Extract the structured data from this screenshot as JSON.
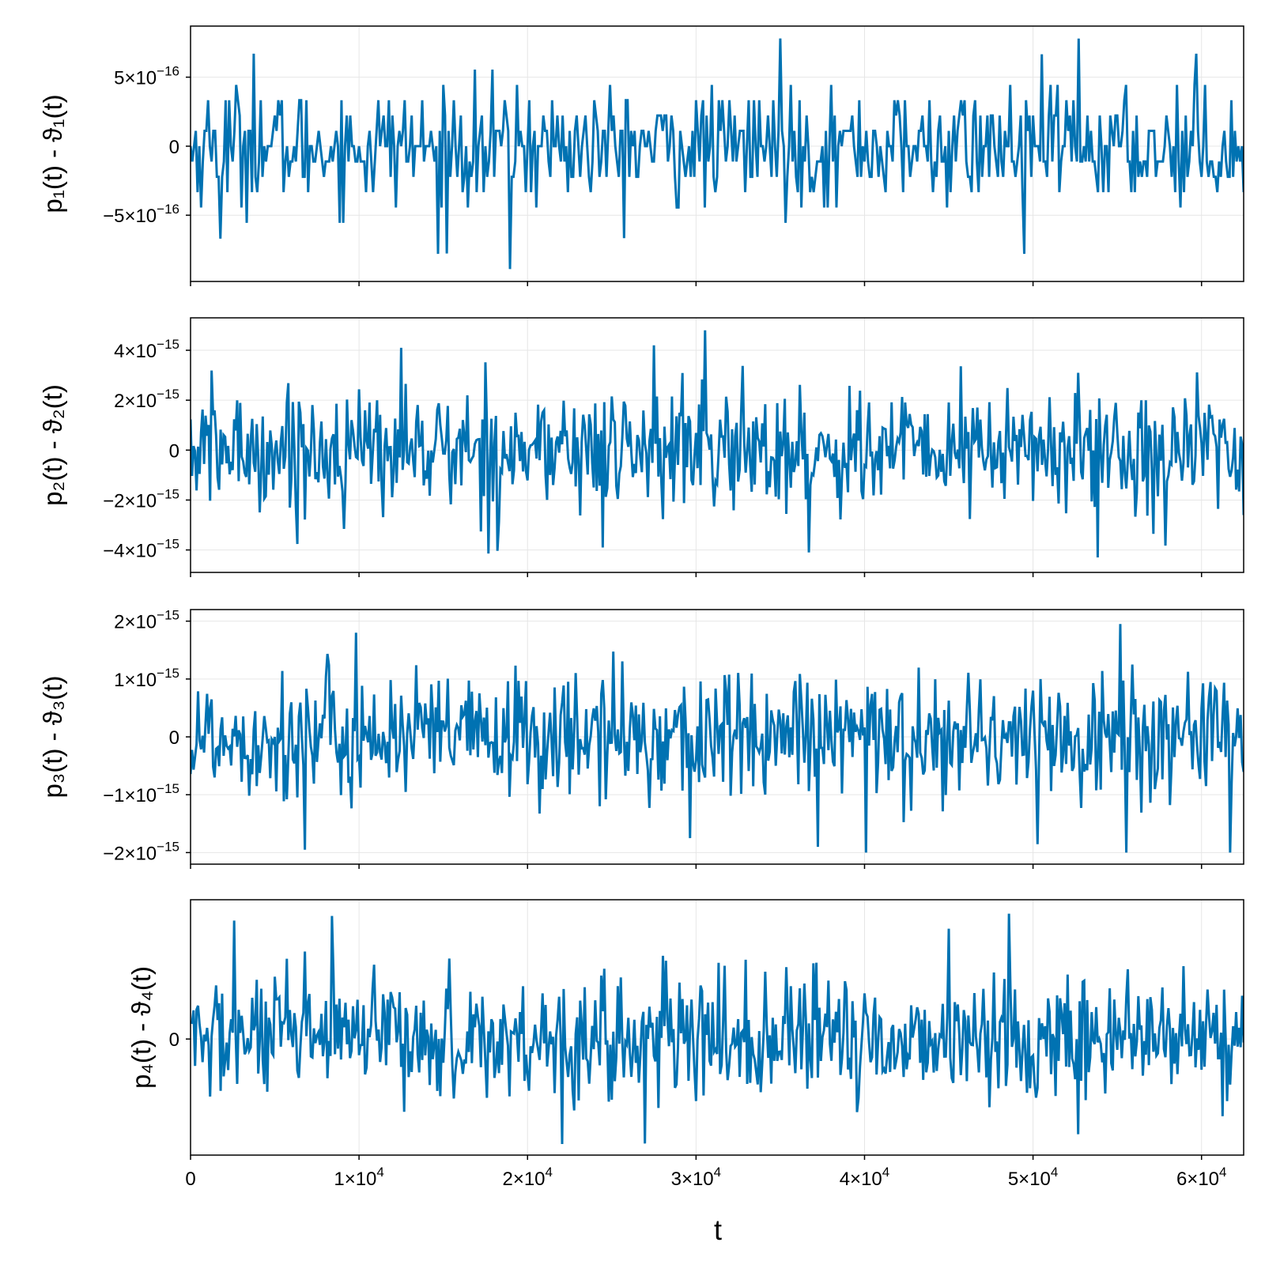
{
  "colors": {
    "series": "#0072b2",
    "grid": "#e6e6e6",
    "frame": "#000000",
    "background": "#ffffff"
  },
  "chart_data": [
    {
      "type": "line",
      "ylabel": "p₁(t) - ϑ₁(t)",
      "xlim": [
        0,
        62500
      ],
      "ylim": [
        -9.8e-16,
        8.7e-16
      ],
      "y_ticks": [
        -5e-16,
        0,
        5e-16
      ],
      "y_tick_labels": [
        {
          "mantissa": "−5×10",
          "exponent": "−16"
        },
        {
          "mantissa": "0",
          "exponent": ""
        },
        {
          "mantissa": "5×10",
          "exponent": "−16"
        }
      ],
      "grid": true,
      "series": [
        {
          "color": "#0072b2",
          "sample_count": 600,
          "noise_std": 2.1e-16,
          "quantum": 1.11e-16,
          "extremes": [
            {
              "x": 19000,
              "y": -8.9e-16
            },
            {
              "x": 35000,
              "y": 7.8e-16
            },
            {
              "x": 52700,
              "y": 7.8e-16
            },
            {
              "x": 3800,
              "y": 6.7e-16
            },
            {
              "x": 14700,
              "y": -7.8e-16
            },
            {
              "x": 49500,
              "y": -7.8e-16
            },
            {
              "x": 1800,
              "y": -6.7e-16
            },
            {
              "x": 59700,
              "y": 6.7e-16
            }
          ]
        }
      ]
    },
    {
      "type": "line",
      "ylabel": "p₂(t) - ϑ₂(t)",
      "xlim": [
        0,
        62500
      ],
      "ylim": [
        -4.9e-15,
        5.3e-15
      ],
      "y_ticks": [
        -4e-15,
        -2e-15,
        0,
        2e-15,
        4e-15
      ],
      "y_tick_labels": [
        {
          "mantissa": "−4×10",
          "exponent": "−15"
        },
        {
          "mantissa": "−2×10",
          "exponent": "−15"
        },
        {
          "mantissa": "0",
          "exponent": ""
        },
        {
          "mantissa": "2×10",
          "exponent": "−15"
        },
        {
          "mantissa": "4×10",
          "exponent": "−15"
        }
      ],
      "grid": true,
      "series": [
        {
          "color": "#0072b2",
          "sample_count": 700,
          "noise_std": 1.25e-15,
          "extremes": [
            {
              "x": 30500,
              "y": 4.8e-15
            },
            {
              "x": 53800,
              "y": -4.3e-15
            },
            {
              "x": 36700,
              "y": -4.1e-15
            },
            {
              "x": 27500,
              "y": 4.2e-15
            },
            {
              "x": 12500,
              "y": 4.1e-15
            },
            {
              "x": 24500,
              "y": -3.9e-15
            }
          ]
        }
      ]
    },
    {
      "type": "line",
      "ylabel": "p₃(t) - ϑ₃(t)",
      "xlim": [
        0,
        62500
      ],
      "ylim": [
        -2.2e-15,
        2.2e-15
      ],
      "y_ticks": [
        -2e-15,
        -1e-15,
        0,
        1e-15,
        2e-15
      ],
      "y_tick_labels": [
        {
          "mantissa": "−2×10",
          "exponent": "−15"
        },
        {
          "mantissa": "−1×10",
          "exponent": "−15"
        },
        {
          "mantissa": "0",
          "exponent": ""
        },
        {
          "mantissa": "1×10",
          "exponent": "−15"
        },
        {
          "mantissa": "2×10",
          "exponent": "−15"
        }
      ],
      "grid": true,
      "series": [
        {
          "color": "#0072b2",
          "sample_count": 700,
          "noise_std": 5.6e-16,
          "extremes": [
            {
              "x": 55200,
              "y": 1.95e-15
            },
            {
              "x": 40100,
              "y": -2e-15
            },
            {
              "x": 55500,
              "y": -2e-15
            },
            {
              "x": 6800,
              "y": -1.95e-15
            },
            {
              "x": 9800,
              "y": 1.8e-15
            },
            {
              "x": 29600,
              "y": -1.75e-15
            },
            {
              "x": 37200,
              "y": -1.9e-15
            },
            {
              "x": 61700,
              "y": -2e-15
            }
          ]
        }
      ]
    },
    {
      "type": "line",
      "ylabel": "p₄(t) - ϑ₄(t)",
      "xlabel": "t",
      "xlim": [
        0,
        62500
      ],
      "ylim": [
        -1.0,
        1.2
      ],
      "y_ticks": [
        0
      ],
      "y_tick_labels": [
        {
          "mantissa": "0",
          "exponent": ""
        }
      ],
      "x_ticks": [
        0,
        10000,
        20000,
        30000,
        40000,
        50000,
        60000
      ],
      "x_tick_labels": [
        {
          "mantissa": "0",
          "exponent": ""
        },
        {
          "mantissa": "1×10",
          "exponent": "4"
        },
        {
          "mantissa": "2×10",
          "exponent": "4"
        },
        {
          "mantissa": "3×10",
          "exponent": "4"
        },
        {
          "mantissa": "4×10",
          "exponent": "4"
        },
        {
          "mantissa": "5×10",
          "exponent": "4"
        },
        {
          "mantissa": "6×10",
          "exponent": "4"
        }
      ],
      "grid": true,
      "series": [
        {
          "color": "#0072b2",
          "sample_count": 700,
          "noise_std": 0.27,
          "extremes": [
            {
              "x": 48600,
              "y": 1.08
            },
            {
              "x": 27000,
              "y": -0.9
            },
            {
              "x": 2600,
              "y": 1.02
            },
            {
              "x": 52700,
              "y": -0.82
            },
            {
              "x": 45000,
              "y": 0.95
            },
            {
              "x": 8400,
              "y": 1.06
            }
          ]
        }
      ]
    }
  ],
  "x_axis": {
    "label": "t"
  }
}
